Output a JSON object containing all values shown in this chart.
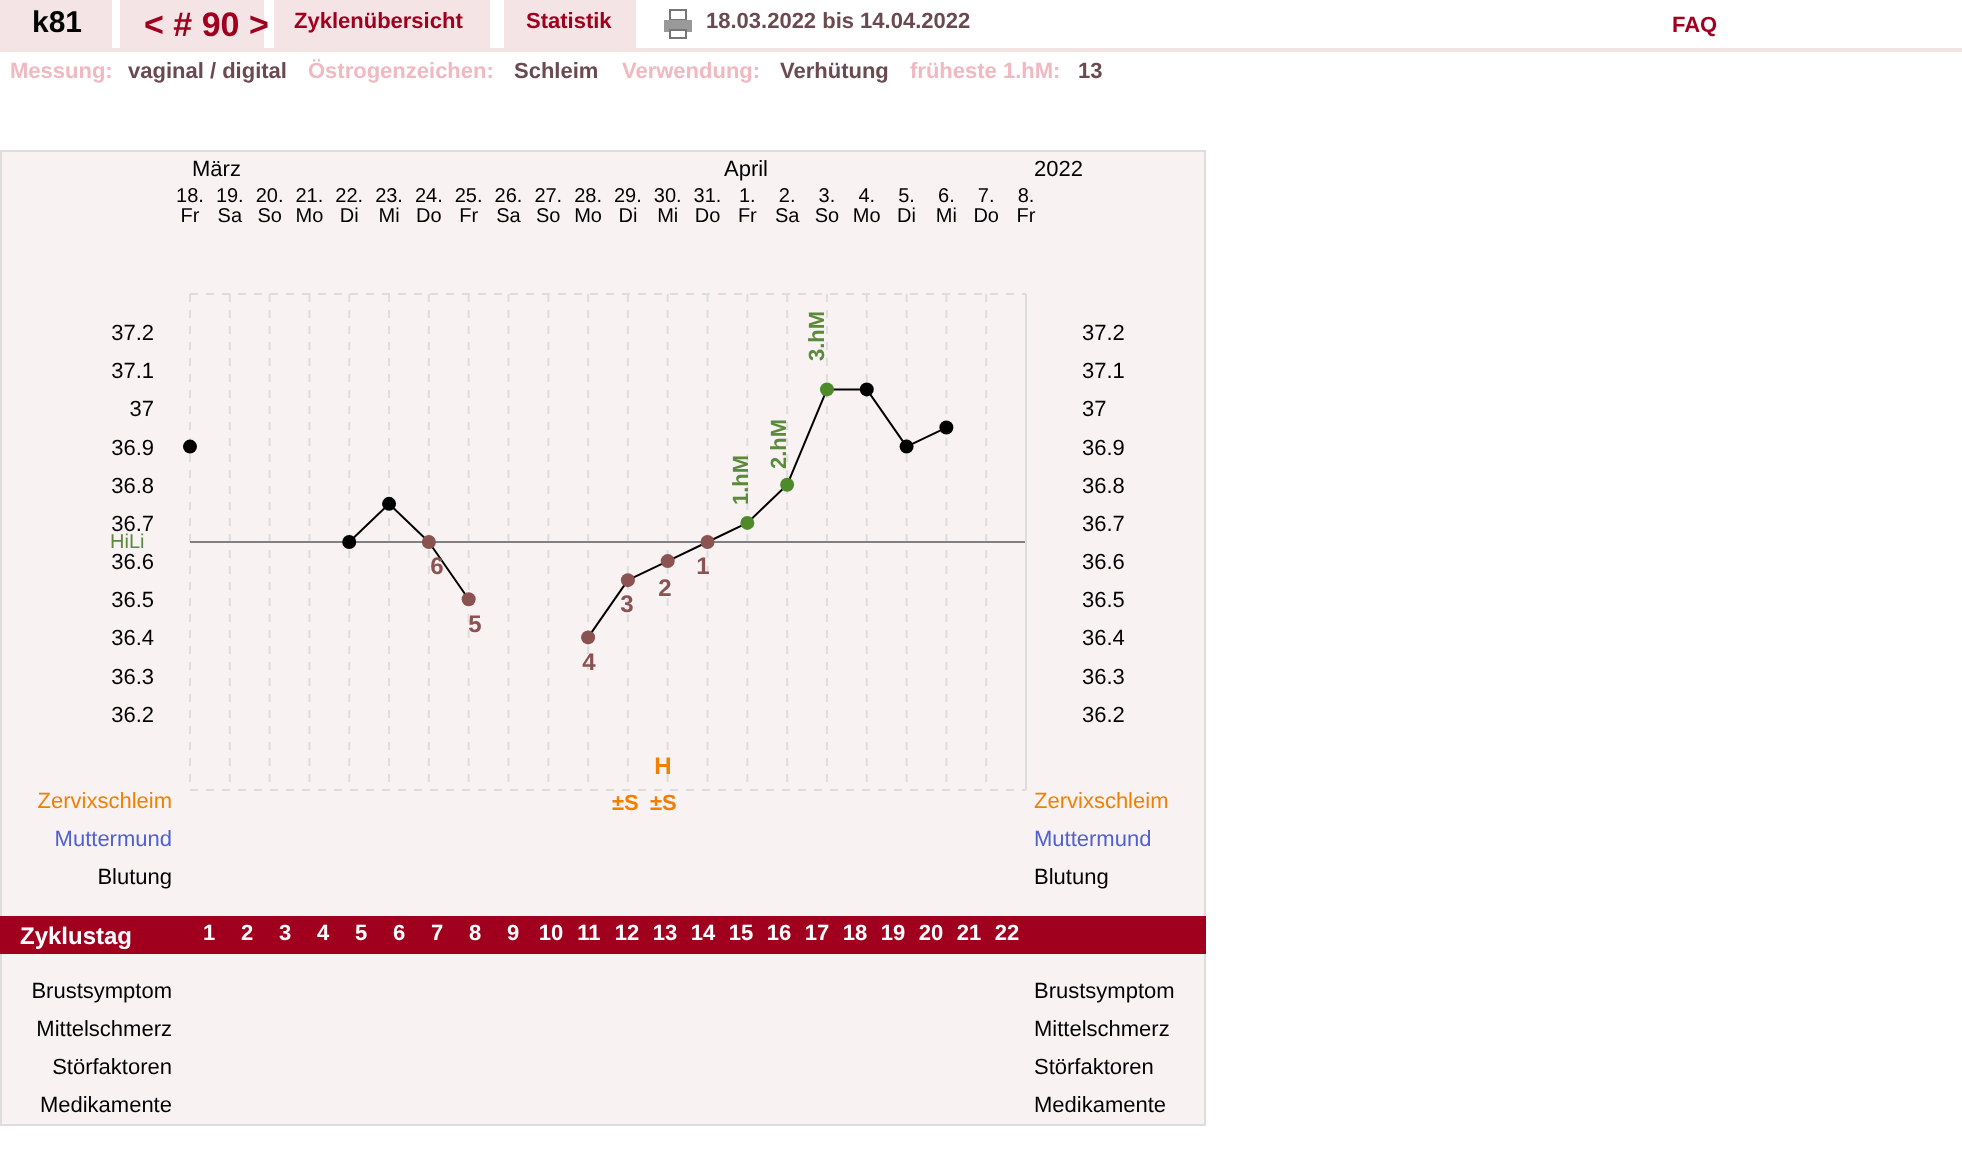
{
  "chart_data": {
    "type": "line",
    "title": "k81",
    "categories": [
      "18. Fr",
      "19. Sa",
      "20. So",
      "21. Mo",
      "22. Di",
      "23. Mi",
      "24. Do",
      "25. Fr",
      "26. Sa",
      "27. So",
      "28. Mo",
      "29. Di",
      "30. Mi",
      "31. Do",
      "1. Fr",
      "2. Sa",
      "3. So",
      "4. Mo",
      "5. Di",
      "6. Mi",
      "7. Do",
      "8. Fr"
    ],
    "series": [
      {
        "color": "#000000",
        "values": [
          36.9,
          null,
          null,
          null,
          36.65,
          36.75,
          36.65,
          36.5,
          null,
          null,
          36.4,
          36.55,
          36.6,
          36.65,
          36.7,
          36.8,
          37.05,
          37.05,
          36.9,
          36.95,
          null,
          null
        ],
        "colors": [
          "#000000",
          null,
          null,
          null,
          "#000000",
          "#000000",
          "#8b5252",
          "#8b5252",
          null,
          null,
          "#8b5252",
          "#8b5252",
          "#8b5252",
          "#8b5252",
          "#4f8a2a",
          "#4f8a2a",
          "#4f8a2a",
          "#000000",
          "#000000",
          "#000000",
          null,
          null
        ]
      }
    ],
    "ylim": [
      36.0,
      37.3
    ],
    "yticks": [
      36.2,
      36.3,
      36.4,
      36.5,
      36.6,
      36.7,
      36.8,
      36.9,
      37,
      37.1,
      37.2
    ],
    "y2lim": [
      36.0,
      37.3
    ],
    "y2ticks": [
      36.2,
      36.3,
      36.4,
      36.5,
      36.6,
      36.7,
      36.8,
      36.9,
      37,
      37.1,
      37.2
    ],
    "grid": true,
    "marker": "circle",
    "legend": false,
    "ref_lines": [
      {
        "axis": "y",
        "value": 36.65,
        "label": "HiLi",
        "color": "#808080"
      }
    ],
    "annotations": [
      "< # 90 >",
      "Zyklenübersicht",
      "Statistik",
      "18.03.2022 bis 14.04.2022",
      "FAQ",
      "Messung:",
      "vaginal / digital",
      "Östrogenzeichen:",
      "Schleim",
      "Verwendung:",
      "Verhütung",
      "früheste 1.hM:",
      "13",
      "März",
      "April",
      "2022",
      "Zervixschleim",
      "Muttermund",
      "Blutung",
      "Zyklustag",
      "Brustsymptom",
      "Mittelschmerz",
      "Störfaktoren",
      "Medikamente",
      "±S",
      "±S",
      "6",
      "5",
      "4",
      "3",
      "2",
      "1",
      "1.hM",
      "2.hM",
      "3.hM",
      "H",
      "1 2 3 4 5 6 7 8 9 10 11 12 13 14 15 16 17 18 19 20 21 22"
    ]
  }
}
